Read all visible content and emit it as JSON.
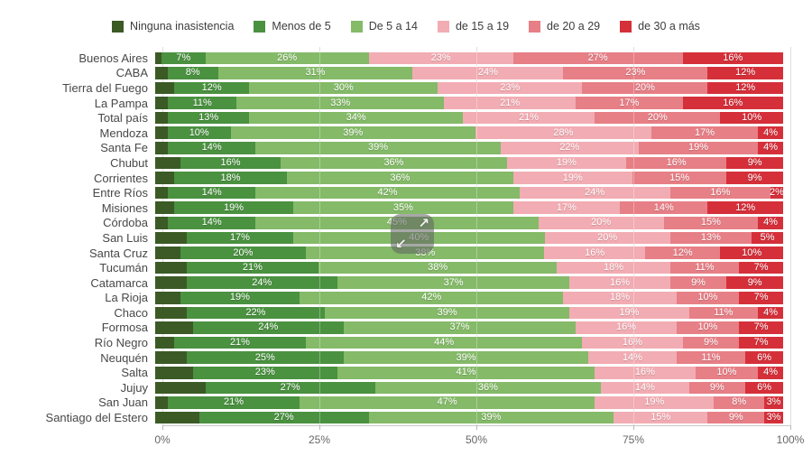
{
  "legend": {
    "items": [
      {
        "label": "Ninguna inasistencia",
        "color": "#3c5a26"
      },
      {
        "label": "Menos de 5",
        "color": "#4a9140"
      },
      {
        "label": "De 5 a 14",
        "color": "#84ba68"
      },
      {
        "label": "de 15 a 19",
        "color": "#f2acb3"
      },
      {
        "label": "de 20 a 29",
        "color": "#e77f86"
      },
      {
        "label": "de 30 a más",
        "color": "#d5303a"
      }
    ]
  },
  "chart_data": {
    "type": "bar",
    "variant": "horizontal-stacked-100-percent",
    "value_suffix": "%",
    "legend_position": "top",
    "categories": [
      "Buenos Aires",
      "CABA",
      "Tierra del Fuego",
      "La Pampa",
      "Total país",
      "Mendoza",
      "Santa Fe",
      "Chubut",
      "Corrientes",
      "Entre Ríos",
      "Misiones",
      "Córdoba",
      "San Luis",
      "Santa Cruz",
      "Tucumán",
      "Catamarca",
      "La Rioja",
      "Chaco",
      "Formosa",
      "Río Negro",
      "Neuquén",
      "Salta",
      "Jujuy",
      "San Juan",
      "Santiago del Estero"
    ],
    "series": [
      {
        "name": "Ninguna inasistencia",
        "color": "#3c5a26",
        "labels_visible": false,
        "values": [
          1,
          2,
          3,
          2,
          2,
          2,
          2,
          4,
          3,
          2,
          3,
          2,
          5,
          4,
          5,
          5,
          4,
          5,
          6,
          3,
          5,
          6,
          8,
          2,
          7
        ]
      },
      {
        "name": "Menos de 5",
        "color": "#4a9140",
        "labels_visible": true,
        "values": [
          7,
          8,
          12,
          11,
          13,
          10,
          14,
          16,
          18,
          14,
          19,
          14,
          17,
          20,
          21,
          24,
          19,
          22,
          24,
          21,
          25,
          23,
          27,
          21,
          27
        ]
      },
      {
        "name": "De 5 a 14",
        "color": "#84ba68",
        "labels_visible": true,
        "values": [
          26,
          31,
          30,
          33,
          34,
          39,
          39,
          36,
          36,
          42,
          35,
          45,
          40,
          38,
          38,
          37,
          42,
          39,
          37,
          44,
          39,
          41,
          36,
          47,
          39
        ]
      },
      {
        "name": "de 15 a 19",
        "color": "#f2acb3",
        "labels_visible": true,
        "values": [
          23,
          24,
          23,
          21,
          21,
          28,
          22,
          19,
          19,
          24,
          17,
          20,
          20,
          16,
          18,
          16,
          18,
          19,
          16,
          16,
          14,
          16,
          14,
          19,
          15
        ]
      },
      {
        "name": "de 20 a 29",
        "color": "#e77f86",
        "labels_visible": true,
        "values": [
          27,
          23,
          20,
          17,
          20,
          17,
          19,
          16,
          15,
          16,
          14,
          15,
          13,
          12,
          11,
          9,
          10,
          11,
          10,
          9,
          11,
          10,
          9,
          8,
          9
        ]
      },
      {
        "name": "de 30 a más",
        "color": "#d5303a",
        "labels_visible": true,
        "values": [
          16,
          12,
          12,
          16,
          10,
          4,
          4,
          9,
          9,
          2,
          12,
          4,
          5,
          10,
          7,
          9,
          7,
          4,
          7,
          7,
          6,
          4,
          6,
          3,
          3
        ]
      }
    ],
    "x_axis": {
      "range": [
        0,
        100
      ],
      "ticks": [
        {
          "label": "0%",
          "value": 0
        },
        {
          "label": "25%",
          "value": 25
        },
        {
          "label": "50%",
          "value": 50
        },
        {
          "label": "75%",
          "value": 75
        },
        {
          "label": "100%",
          "value": 100
        }
      ],
      "grid": true
    }
  },
  "overlay": {
    "arrow_up_right": "↗",
    "arrow_down_left": "↙"
  }
}
